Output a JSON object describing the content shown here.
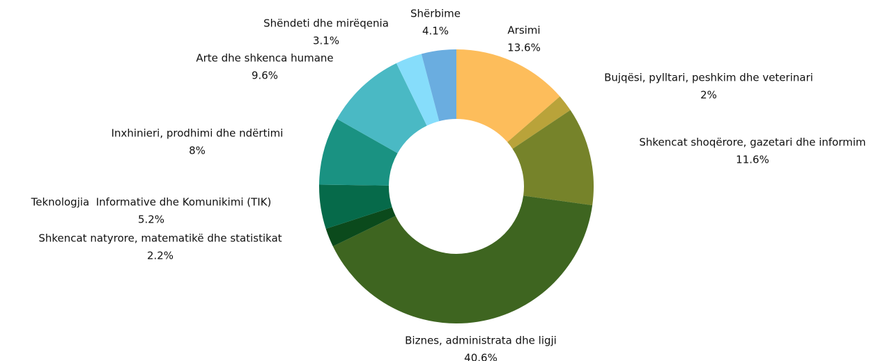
{
  "chart_data": {
    "type": "donut",
    "categories": [
      "Arsimi",
      "Bujqësi, pylltari, peshkim dhe veterinari",
      "Shkencat shoqërore, gazetari dhe informim",
      "Biznes, administrata dhe ligji",
      "Shkencat natyrore, matematikë dhe statistikat",
      "Teknologjia  Informative dhe Komunikimi (TIK)",
      "Inxhinieri, prodhimi dhe ndërtimi",
      "Arte dhe shkenca humane",
      "Shëndeti dhe mirëqenia",
      "Shërbime"
    ],
    "values": [
      13.6,
      2,
      11.6,
      40.6,
      2.2,
      5.2,
      8,
      9.6,
      3.1,
      4.1
    ],
    "value_labels": [
      "13.6%",
      "2%",
      "11.6%",
      "40.6%",
      "2.2%",
      "5.2%",
      "8%",
      "9.6%",
      "3.1%",
      "4.1%"
    ],
    "colors": [
      "#fdbd5b",
      "#b9a33a",
      "#76832a",
      "#3e6520",
      "#0b4a1c",
      "#066a4a",
      "#1a9282",
      "#4ab9c4",
      "#86ddfb",
      "#6aade0"
    ]
  }
}
